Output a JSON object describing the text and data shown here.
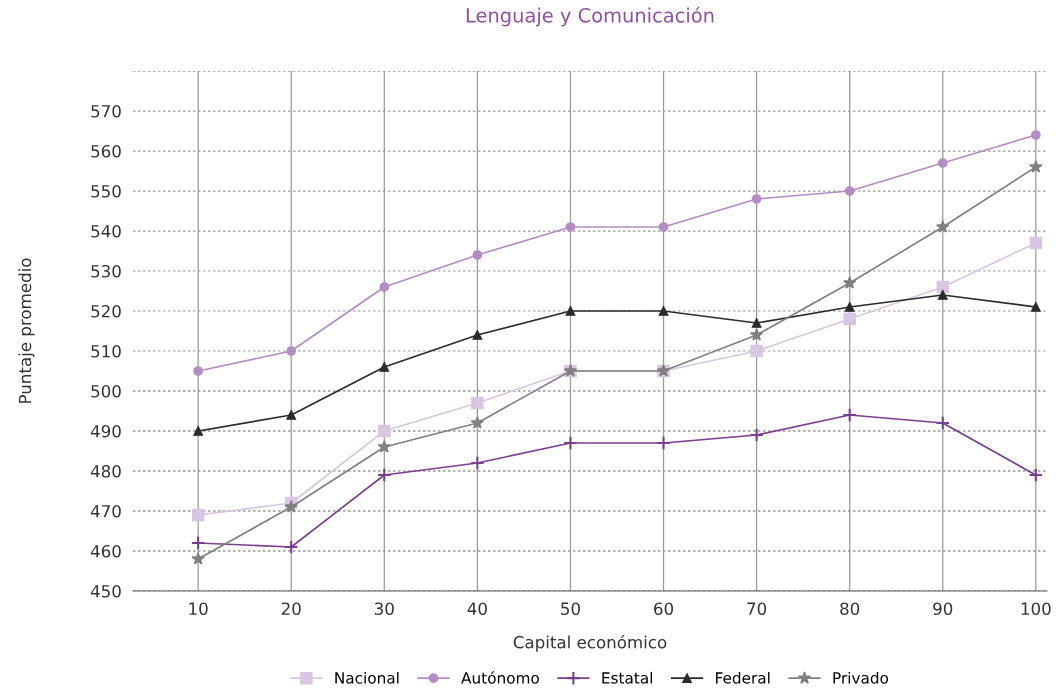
{
  "chart_data": {
    "type": "line",
    "title": "Lenguaje y Comunicación",
    "xlabel": "Capital económico",
    "ylabel": "Puntaje promedio",
    "categories": [
      "10",
      "20",
      "30",
      "40",
      "50",
      "60",
      "70",
      "80",
      "90",
      "100"
    ],
    "ylim": [
      450,
      580
    ],
    "yticks": [
      450,
      460,
      470,
      480,
      490,
      500,
      510,
      520,
      530,
      540,
      550,
      560,
      570,
      {
        "value": 580,
        "label": null
      }
    ],
    "grid": true,
    "legend": "bottom",
    "series": [
      {
        "name": "Nacional",
        "color": "#d9c6e3",
        "marker": "square",
        "values": [
          469,
          472,
          490,
          497,
          505,
          505,
          510,
          518,
          526,
          537
        ]
      },
      {
        "name": "Autónomo",
        "color": "#b48cc4",
        "marker": "circle",
        "values": [
          505,
          510,
          526,
          534,
          541,
          541,
          548,
          550,
          557,
          564
        ]
      },
      {
        "name": "Estatal",
        "color": "#7b3f8f",
        "marker": "cross",
        "values": [
          462,
          461,
          479,
          482,
          487,
          487,
          489,
          494,
          492,
          479
        ]
      },
      {
        "name": "Federal",
        "color": "#2b2b2b",
        "marker": "triangle",
        "values": [
          490,
          494,
          506,
          514,
          520,
          520,
          517,
          521,
          524,
          521
        ]
      },
      {
        "name": "Privado",
        "color": "#808080",
        "marker": "star",
        "values": [
          458,
          471,
          486,
          492,
          505,
          505,
          514,
          527,
          541,
          556
        ]
      }
    ]
  }
}
